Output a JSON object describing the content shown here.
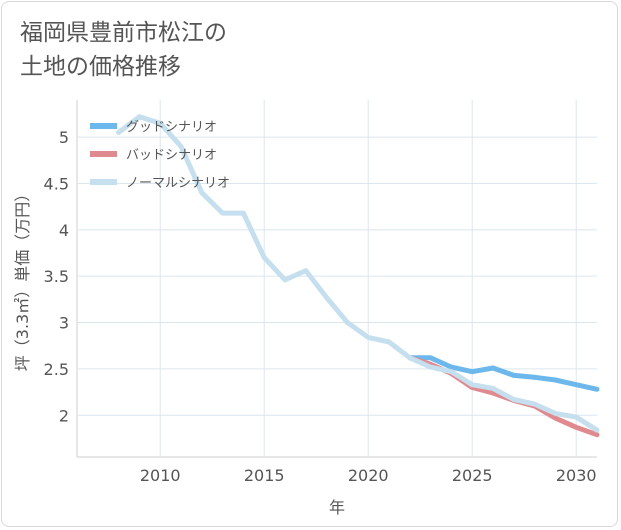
{
  "title_lines": [
    "福岡県豊前市松江の",
    "土地の価格推移"
  ],
  "chart_data": {
    "type": "line",
    "xlabel": "年",
    "ylabel": "坪（3.3㎡）単価（万円）",
    "xlim": [
      2006,
      2031
    ],
    "ylim": [
      1.55,
      5.4
    ],
    "x_ticks": [
      2010,
      2015,
      2020,
      2025,
      2030
    ],
    "y_ticks": [
      2,
      2.5,
      3,
      3.5,
      4,
      4.5,
      5
    ],
    "grid": true,
    "legend_position": "top-left",
    "series": [
      {
        "name": "グッドシナリオ",
        "color": "#6cb8ec",
        "x": [
          2022,
          2023,
          2024,
          2025,
          2026,
          2027,
          2028,
          2029,
          2030,
          2031
        ],
        "y": [
          2.62,
          2.62,
          2.52,
          2.47,
          2.51,
          2.43,
          2.41,
          2.38,
          2.33,
          2.28
        ]
      },
      {
        "name": "バッドシナリオ",
        "color": "#df8a8f",
        "x": [
          2022,
          2023,
          2024,
          2025,
          2026,
          2027,
          2028,
          2029,
          2030,
          2031
        ],
        "y": [
          2.62,
          2.55,
          2.45,
          2.3,
          2.24,
          2.16,
          2.1,
          1.97,
          1.87,
          1.79
        ]
      },
      {
        "name": "ノーマルシナリオ",
        "color": "#c5dfee",
        "x": [
          2008,
          2009,
          2010,
          2011,
          2012,
          2013,
          2014,
          2015,
          2016,
          2017,
          2018,
          2019,
          2020,
          2021,
          2022,
          2023,
          2024,
          2025,
          2026,
          2027,
          2028,
          2029,
          2030,
          2031
        ],
        "y": [
          5.05,
          5.22,
          5.15,
          4.9,
          4.4,
          4.18,
          4.18,
          3.7,
          3.46,
          3.56,
          3.27,
          3.0,
          2.84,
          2.79,
          2.62,
          2.52,
          2.47,
          2.33,
          2.29,
          2.17,
          2.12,
          2.02,
          1.98,
          1.84
        ]
      }
    ]
  }
}
